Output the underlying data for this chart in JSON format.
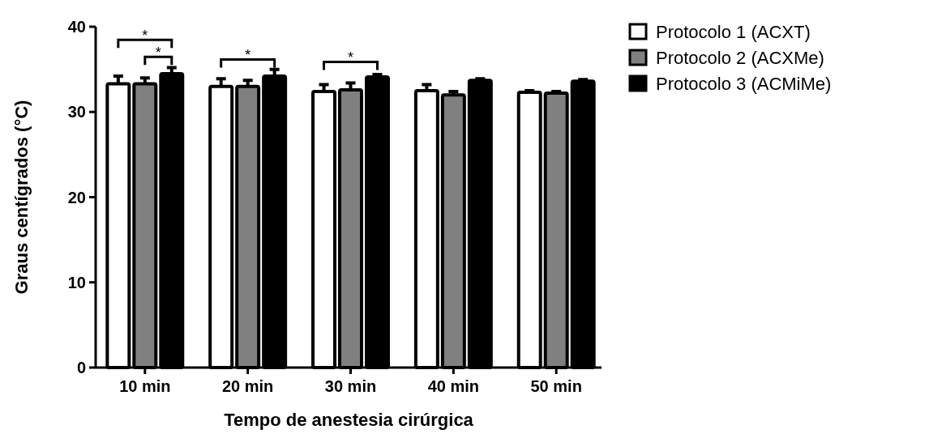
{
  "chart_data": {
    "type": "bar",
    "xlabel": "Tempo de anestesia cirúrgica",
    "ylabel": "Graus centígrados (°C)",
    "categories": [
      "10 min",
      "20 min",
      "30 min",
      "40 min",
      "50 min"
    ],
    "series": [
      {
        "name": "Protocolo 1 (ACXT)",
        "color": "#ffffff",
        "values": [
          33.3,
          33.0,
          32.4,
          32.5,
          32.3
        ],
        "errors": [
          0.9,
          0.9,
          0.8,
          0.7,
          0.2
        ]
      },
      {
        "name": "Protocolo 2 (ACXMe)",
        "color": "#808080",
        "values": [
          33.3,
          33.0,
          32.6,
          32.0,
          32.2
        ],
        "errors": [
          0.7,
          0.7,
          0.8,
          0.4,
          0.2
        ]
      },
      {
        "name": "Protocolo 3 (ACMiMe)",
        "color": "#000000",
        "values": [
          34.5,
          34.2,
          34.1,
          33.7,
          33.6
        ],
        "errors": [
          0.7,
          0.8,
          0.3,
          0.2,
          0.2
        ]
      }
    ],
    "ylim": [
      0,
      40
    ],
    "yticks": [
      0,
      10,
      20,
      30,
      40
    ],
    "legend": "top right",
    "annotations": [
      "*",
      "*",
      "*",
      "*"
    ]
  }
}
